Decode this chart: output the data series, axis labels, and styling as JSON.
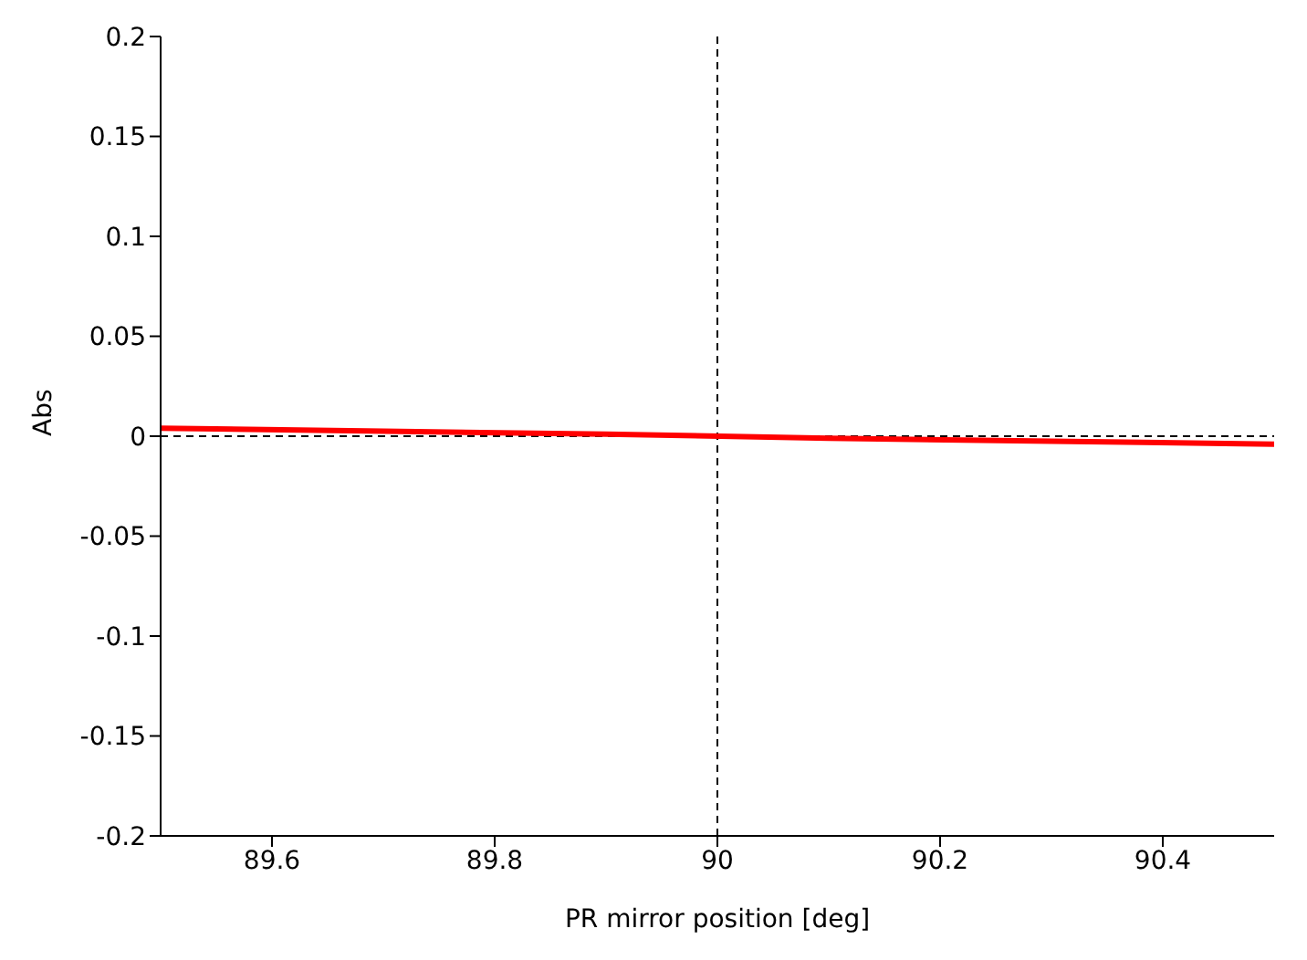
{
  "chart_data": {
    "type": "line",
    "xlabel": "PR mirror position [deg]",
    "ylabel": "Abs",
    "x": [
      89.5,
      89.7,
      89.9,
      90.1,
      90.3,
      90.5
    ],
    "series": [
      {
        "color": "#ff0000",
        "values": [
          0.004,
          0.0025,
          0.001,
          -0.001,
          -0.0025,
          -0.004
        ]
      }
    ],
    "xlim": [
      89.5,
      90.5
    ],
    "xticks": [
      89.6,
      89.8,
      90,
      90.2,
      90.4
    ],
    "ylim": [
      -0.2,
      0.2
    ],
    "yticks": [
      -0.2,
      -0.15,
      -0.1,
      -0.05,
      0,
      0.05,
      0.1,
      0.15,
      0.2
    ],
    "ref_lines": [
      {
        "axis": "x",
        "value": 90,
        "color": "#000000",
        "line_style": "dashed"
      },
      {
        "axis": "y",
        "value": 0,
        "color": "#000000",
        "line_style": "dashed"
      }
    ],
    "grid": false,
    "legend": false,
    "marker": "none",
    "line_style": "solid"
  }
}
